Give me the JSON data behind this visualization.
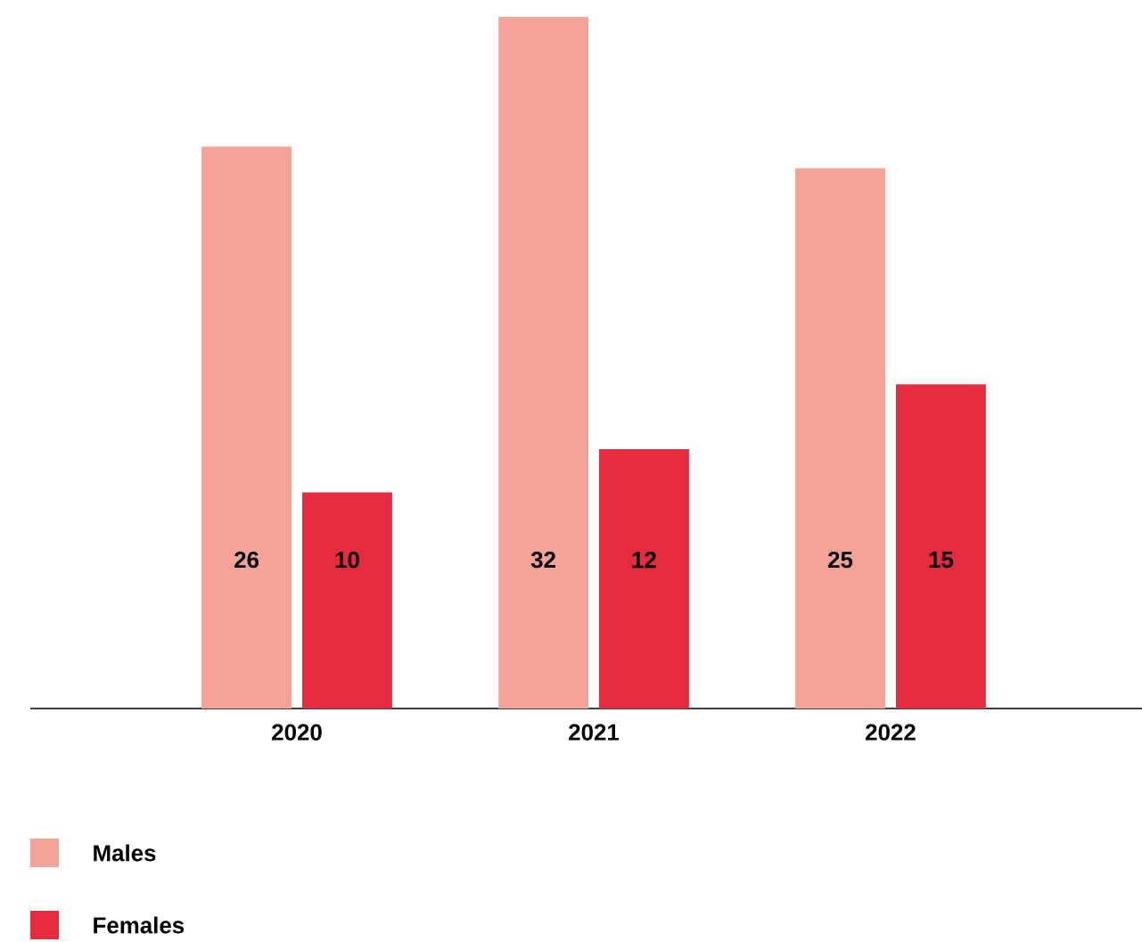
{
  "chart_data": {
    "type": "bar",
    "categories": [
      "2020",
      "2021",
      "2022"
    ],
    "series": [
      {
        "name": "Males",
        "color": "#f4a398",
        "values": [
          26,
          32,
          25
        ]
      },
      {
        "name": "Females",
        "color": "#e52b40",
        "values": [
          10,
          12,
          15
        ]
      }
    ],
    "data_labels": true,
    "legend": "bottom left"
  }
}
